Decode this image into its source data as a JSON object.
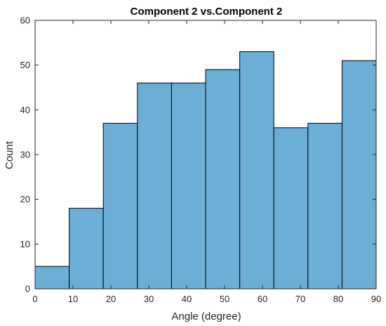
{
  "chart_data": {
    "type": "bar",
    "subtype": "histogram",
    "title": "Component 2 vs.Component 2",
    "xlabel": "Angle (degree)",
    "ylabel": "Count",
    "bin_edges": [
      0,
      9,
      18,
      27,
      36,
      45,
      54,
      63,
      72,
      81,
      90
    ],
    "values": [
      5,
      18,
      37,
      46,
      46,
      49,
      53,
      36,
      37,
      51
    ],
    "xlim": [
      0,
      90
    ],
    "ylim": [
      0,
      60
    ],
    "xticks": [
      0,
      10,
      20,
      30,
      40,
      50,
      60,
      70,
      80,
      90
    ],
    "yticks": [
      0,
      10,
      20,
      30,
      40,
      50,
      60
    ],
    "bar_color": "#6baed6",
    "bar_edge_color": "#000000",
    "grid": false,
    "legend": "none"
  }
}
